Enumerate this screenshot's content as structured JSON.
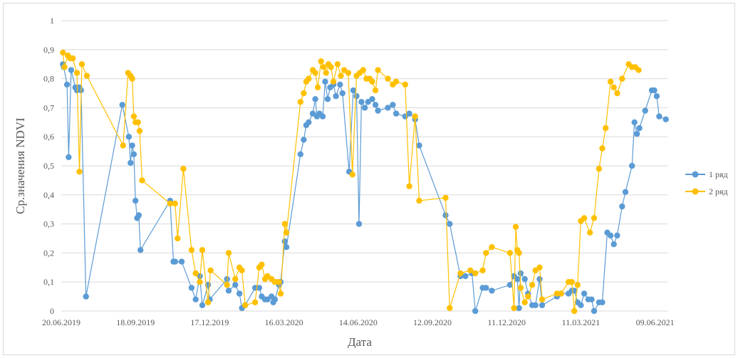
{
  "chart_data": {
    "type": "line",
    "title": "",
    "xlabel": "Дата",
    "ylabel": "Ср.значения NDVI",
    "ylim": [
      0,
      1
    ],
    "yticks": [
      "0",
      "0,1",
      "0,2",
      "0,3",
      "0,4",
      "0,5",
      "0,6",
      "0,7",
      "0,8",
      "0,9",
      "1"
    ],
    "xlim": [
      "2019-06-20",
      "2021-06-24"
    ],
    "xticks": [
      {
        "date": "2019-06-20",
        "label": "20.06.2019"
      },
      {
        "date": "2019-09-18",
        "label": "18.09.2019"
      },
      {
        "date": "2019-12-17",
        "label": "17.12.2019"
      },
      {
        "date": "2020-03-16",
        "label": "16.03.2020"
      },
      {
        "date": "2020-06-14",
        "label": "14.06.2020"
      },
      {
        "date": "2020-09-12",
        "label": "12.09.2020"
      },
      {
        "date": "2020-12-11",
        "label": "11.12.2020"
      },
      {
        "date": "2021-03-11",
        "label": "11.03.2021"
      },
      {
        "date": "2021-06-09",
        "label": "09.06.2021"
      }
    ],
    "grid": true,
    "legend": "right",
    "series": [
      {
        "name": "1 ряд",
        "color": "#5b9bd5",
        "points": [
          [
            "2019-06-22",
            0.85
          ],
          [
            "2019-06-23",
            0.84
          ],
          [
            "2019-06-27",
            0.78
          ],
          [
            "2019-06-29",
            0.53
          ],
          [
            "2019-07-02",
            0.83
          ],
          [
            "2019-07-07",
            0.77
          ],
          [
            "2019-07-09",
            0.76
          ],
          [
            "2019-07-12",
            0.77
          ],
          [
            "2019-07-14",
            0.76
          ],
          [
            "2019-07-20",
            0.05
          ],
          [
            "2019-09-02",
            0.71
          ],
          [
            "2019-09-10",
            0.6
          ],
          [
            "2019-09-12",
            0.51
          ],
          [
            "2019-09-14",
            0.57
          ],
          [
            "2019-09-16",
            0.54
          ],
          [
            "2019-09-18",
            0.38
          ],
          [
            "2019-09-20",
            0.32
          ],
          [
            "2019-09-22",
            0.33
          ],
          [
            "2019-09-24",
            0.21
          ],
          [
            "2019-10-30",
            0.38
          ],
          [
            "2019-11-03",
            0.17
          ],
          [
            "2019-11-05",
            0.17
          ],
          [
            "2019-11-13",
            0.17
          ],
          [
            "2019-11-25",
            0.08
          ],
          [
            "2019-11-30",
            0.04
          ],
          [
            "2019-12-05",
            0.12
          ],
          [
            "2019-12-08",
            0.02
          ],
          [
            "2019-12-15",
            0.09
          ],
          [
            "2019-12-17",
            0.04
          ],
          [
            "2020-01-07",
            0.11
          ],
          [
            "2020-01-09",
            0.07
          ],
          [
            "2020-01-17",
            0.09
          ],
          [
            "2020-01-22",
            0.06
          ],
          [
            "2020-01-25",
            0.01
          ],
          [
            "2020-01-29",
            0.02
          ],
          [
            "2020-02-10",
            0.08
          ],
          [
            "2020-02-15",
            0.08
          ],
          [
            "2020-02-18",
            0.05
          ],
          [
            "2020-02-22",
            0.04
          ],
          [
            "2020-02-25",
            0.04
          ],
          [
            "2020-03-01",
            0.05
          ],
          [
            "2020-03-03",
            0.03
          ],
          [
            "2020-03-05",
            0.04
          ],
          [
            "2020-03-10",
            0.09
          ],
          [
            "2020-03-12",
            0.1
          ],
          [
            "2020-03-17",
            0.24
          ],
          [
            "2020-03-19",
            0.22
          ],
          [
            "2020-04-05",
            0.54
          ],
          [
            "2020-04-09",
            0.59
          ],
          [
            "2020-04-12",
            0.64
          ],
          [
            "2020-04-15",
            0.65
          ],
          [
            "2020-04-20",
            0.68
          ],
          [
            "2020-04-23",
            0.73
          ],
          [
            "2020-04-25",
            0.67
          ],
          [
            "2020-04-28",
            0.68
          ],
          [
            "2020-05-02",
            0.67
          ],
          [
            "2020-05-05",
            0.79
          ],
          [
            "2020-05-08",
            0.73
          ],
          [
            "2020-05-11",
            0.77
          ],
          [
            "2020-05-15",
            0.78
          ],
          [
            "2020-05-18",
            0.74
          ],
          [
            "2020-05-23",
            0.78
          ],
          [
            "2020-05-26",
            0.75
          ],
          [
            "2020-06-03",
            0.48
          ],
          [
            "2020-06-08",
            0.76
          ],
          [
            "2020-06-12",
            0.74
          ],
          [
            "2020-06-15",
            0.3
          ],
          [
            "2020-06-18",
            0.72
          ],
          [
            "2020-06-22",
            0.7
          ],
          [
            "2020-06-26",
            0.72
          ],
          [
            "2020-07-01",
            0.73
          ],
          [
            "2020-07-05",
            0.71
          ],
          [
            "2020-07-08",
            0.69
          ],
          [
            "2020-07-20",
            0.7
          ],
          [
            "2020-07-26",
            0.71
          ],
          [
            "2020-07-30",
            0.68
          ],
          [
            "2020-08-10",
            0.67
          ],
          [
            "2020-08-15",
            0.68
          ],
          [
            "2020-08-22",
            0.66
          ],
          [
            "2020-08-27",
            0.57
          ],
          [
            "2020-09-28",
            0.33
          ],
          [
            "2020-10-03",
            0.3
          ],
          [
            "2020-10-16",
            0.12
          ],
          [
            "2020-10-22",
            0.12
          ],
          [
            "2020-10-30",
            0.13
          ],
          [
            "2020-11-03",
            0.0
          ],
          [
            "2020-11-12",
            0.08
          ],
          [
            "2020-11-16",
            0.08
          ],
          [
            "2020-11-23",
            0.07
          ],
          [
            "2020-12-15",
            0.09
          ],
          [
            "2020-12-20",
            0.12
          ],
          [
            "2020-12-24",
            0.11
          ],
          [
            "2020-12-26",
            0.01
          ],
          [
            "2020-12-28",
            0.13
          ],
          [
            "2021-01-02",
            0.11
          ],
          [
            "2021-01-06",
            0.06
          ],
          [
            "2021-01-11",
            0.02
          ],
          [
            "2021-01-15",
            0.02
          ],
          [
            "2021-01-20",
            0.11
          ],
          [
            "2021-01-23",
            0.02
          ],
          [
            "2021-02-10",
            0.05
          ],
          [
            "2021-02-15",
            0.06
          ],
          [
            "2021-02-24",
            0.06
          ],
          [
            "2021-02-28",
            0.07
          ],
          [
            "2021-03-03",
            0.07
          ],
          [
            "2021-03-07",
            0.03
          ],
          [
            "2021-03-11",
            0.02
          ],
          [
            "2021-03-15",
            0.06
          ],
          [
            "2021-03-20",
            0.04
          ],
          [
            "2021-03-24",
            0.04
          ],
          [
            "2021-03-27",
            0.0
          ],
          [
            "2021-04-02",
            0.03
          ],
          [
            "2021-04-06",
            0.03
          ],
          [
            "2021-04-12",
            0.27
          ],
          [
            "2021-04-16",
            0.26
          ],
          [
            "2021-04-20",
            0.23
          ],
          [
            "2021-04-24",
            0.26
          ],
          [
            "2021-04-30",
            0.36
          ],
          [
            "2021-05-04",
            0.41
          ],
          [
            "2021-05-12",
            0.5
          ],
          [
            "2021-05-15",
            0.65
          ],
          [
            "2021-05-18",
            0.61
          ],
          [
            "2021-05-21",
            0.63
          ],
          [
            "2021-05-28",
            0.69
          ],
          [
            "2021-06-05",
            0.76
          ],
          [
            "2021-06-08",
            0.76
          ],
          [
            "2021-06-11",
            0.74
          ],
          [
            "2021-06-14",
            0.67
          ],
          [
            "2021-06-22",
            0.66
          ]
        ]
      },
      {
        "name": "2 ряд",
        "color": "#ffc000",
        "points": [
          [
            "2019-06-22",
            0.89
          ],
          [
            "2019-06-24",
            0.84
          ],
          [
            "2019-06-28",
            0.88
          ],
          [
            "2019-07-01",
            0.87
          ],
          [
            "2019-07-04",
            0.87
          ],
          [
            "2019-07-09",
            0.82
          ],
          [
            "2019-07-12",
            0.48
          ],
          [
            "2019-07-15",
            0.85
          ],
          [
            "2019-07-21",
            0.81
          ],
          [
            "2019-09-03",
            0.57
          ],
          [
            "2019-09-09",
            0.82
          ],
          [
            "2019-09-12",
            0.81
          ],
          [
            "2019-09-14",
            0.8
          ],
          [
            "2019-09-16",
            0.67
          ],
          [
            "2019-09-18",
            0.65
          ],
          [
            "2019-09-21",
            0.65
          ],
          [
            "2019-09-23",
            0.62
          ],
          [
            "2019-09-26",
            0.45
          ],
          [
            "2019-10-30",
            0.37
          ],
          [
            "2019-11-05",
            0.37
          ],
          [
            "2019-11-08",
            0.25
          ],
          [
            "2019-11-15",
            0.49
          ],
          [
            "2019-11-25",
            0.21
          ],
          [
            "2019-11-30",
            0.13
          ],
          [
            "2019-12-05",
            0.1
          ],
          [
            "2019-12-08",
            0.21
          ],
          [
            "2019-12-15",
            0.03
          ],
          [
            "2019-12-18",
            0.14
          ],
          [
            "2020-01-07",
            0.09
          ],
          [
            "2020-01-09",
            0.2
          ],
          [
            "2020-01-17",
            0.11
          ],
          [
            "2020-01-22",
            0.15
          ],
          [
            "2020-01-25",
            0.14
          ],
          [
            "2020-01-29",
            0.02
          ],
          [
            "2020-02-10",
            0.03
          ],
          [
            "2020-02-15",
            0.15
          ],
          [
            "2020-02-18",
            0.16
          ],
          [
            "2020-02-22",
            0.11
          ],
          [
            "2020-02-25",
            0.12
          ],
          [
            "2020-03-01",
            0.11
          ],
          [
            "2020-03-05",
            0.1
          ],
          [
            "2020-03-09",
            0.1
          ],
          [
            "2020-03-12",
            0.06
          ],
          [
            "2020-03-17",
            0.3
          ],
          [
            "2020-03-19",
            0.27
          ],
          [
            "2020-04-05",
            0.72
          ],
          [
            "2020-04-09",
            0.75
          ],
          [
            "2020-04-12",
            0.79
          ],
          [
            "2020-04-15",
            0.8
          ],
          [
            "2020-04-20",
            0.83
          ],
          [
            "2020-04-23",
            0.82
          ],
          [
            "2020-04-26",
            0.77
          ],
          [
            "2020-04-30",
            0.86
          ],
          [
            "2020-05-03",
            0.84
          ],
          [
            "2020-05-06",
            0.82
          ],
          [
            "2020-05-09",
            0.85
          ],
          [
            "2020-05-12",
            0.84
          ],
          [
            "2020-05-15",
            0.79
          ],
          [
            "2020-05-20",
            0.85
          ],
          [
            "2020-05-24",
            0.81
          ],
          [
            "2020-05-28",
            0.83
          ],
          [
            "2020-06-02",
            0.82
          ],
          [
            "2020-06-07",
            0.47
          ],
          [
            "2020-06-12",
            0.81
          ],
          [
            "2020-06-16",
            0.82
          ],
          [
            "2020-06-20",
            0.83
          ],
          [
            "2020-06-24",
            0.8
          ],
          [
            "2020-06-28",
            0.8
          ],
          [
            "2020-07-01",
            0.79
          ],
          [
            "2020-07-05",
            0.76
          ],
          [
            "2020-07-08",
            0.83
          ],
          [
            "2020-07-20",
            0.8
          ],
          [
            "2020-07-26",
            0.78
          ],
          [
            "2020-07-30",
            0.79
          ],
          [
            "2020-08-10",
            0.78
          ],
          [
            "2020-08-15",
            0.43
          ],
          [
            "2020-08-22",
            0.67
          ],
          [
            "2020-08-27",
            0.38
          ],
          [
            "2020-09-28",
            0.39
          ],
          [
            "2020-10-03",
            0.01
          ],
          [
            "2020-10-16",
            0.13
          ],
          [
            "2020-10-28",
            0.14
          ],
          [
            "2020-11-03",
            0.13
          ],
          [
            "2020-11-12",
            0.14
          ],
          [
            "2020-11-16",
            0.2
          ],
          [
            "2020-11-23",
            0.22
          ],
          [
            "2020-12-15",
            0.2
          ],
          [
            "2020-12-20",
            0.01
          ],
          [
            "2020-12-22",
            0.29
          ],
          [
            "2020-12-24",
            0.21
          ],
          [
            "2020-12-26",
            0.2
          ],
          [
            "2020-12-28",
            0.08
          ],
          [
            "2021-01-02",
            0.03
          ],
          [
            "2021-01-06",
            0.05
          ],
          [
            "2021-01-11",
            0.09
          ],
          [
            "2021-01-15",
            0.14
          ],
          [
            "2021-01-20",
            0.15
          ],
          [
            "2021-01-23",
            0.04
          ],
          [
            "2021-02-10",
            0.06
          ],
          [
            "2021-02-15",
            0.06
          ],
          [
            "2021-02-24",
            0.1
          ],
          [
            "2021-02-28",
            0.1
          ],
          [
            "2021-03-03",
            0.0
          ],
          [
            "2021-03-07",
            0.09
          ],
          [
            "2021-03-11",
            0.31
          ],
          [
            "2021-03-15",
            0.32
          ],
          [
            "2021-03-22",
            0.27
          ],
          [
            "2021-03-27",
            0.32
          ],
          [
            "2021-04-02",
            0.49
          ],
          [
            "2021-04-06",
            0.56
          ],
          [
            "2021-04-10",
            0.63
          ],
          [
            "2021-04-16",
            0.79
          ],
          [
            "2021-04-20",
            0.77
          ],
          [
            "2021-04-24",
            0.75
          ],
          [
            "2021-04-30",
            0.8
          ],
          [
            "2021-05-08",
            0.85
          ],
          [
            "2021-05-12",
            0.84
          ],
          [
            "2021-05-16",
            0.84
          ],
          [
            "2021-05-20",
            0.83
          ]
        ]
      }
    ]
  }
}
